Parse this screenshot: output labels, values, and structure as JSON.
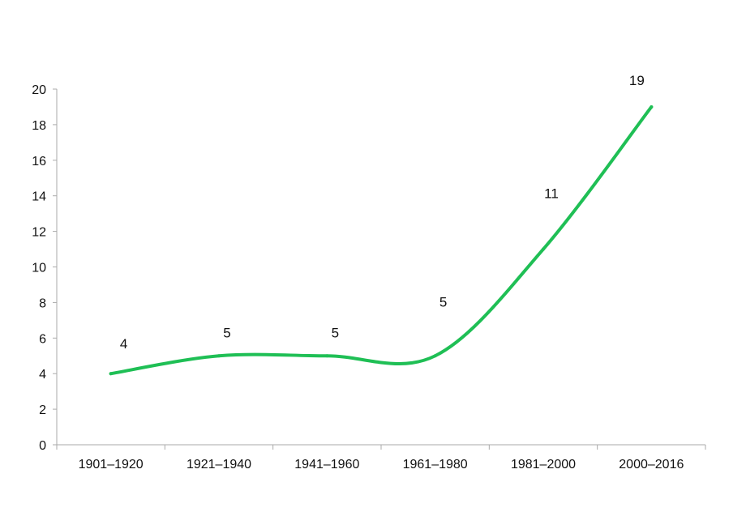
{
  "chart_data": {
    "type": "line",
    "categories": [
      "1901–1920",
      "1921–1940",
      "1941–1960",
      "1961–1980",
      "1981–2000",
      "2000–2016"
    ],
    "values": [
      4,
      5,
      5,
      5,
      11,
      19
    ],
    "data_labels": [
      "4",
      "5",
      "5",
      "5",
      "11",
      "19"
    ],
    "ylim": [
      0,
      20
    ],
    "y_ticks": [
      0,
      2,
      4,
      6,
      8,
      10,
      12,
      14,
      16,
      18,
      20
    ],
    "smooth": true,
    "grid": false,
    "legend": "none",
    "line_color": "#1fbf55",
    "axis_color": "#aaaaaa"
  }
}
